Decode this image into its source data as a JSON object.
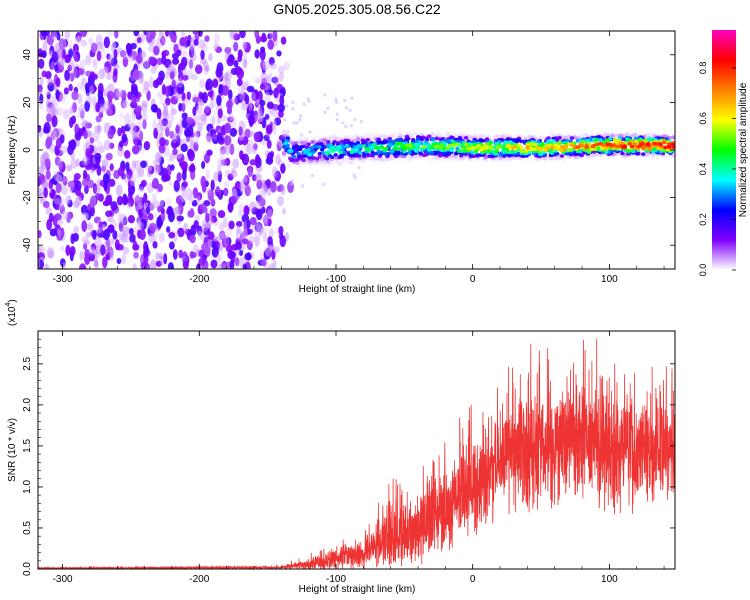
{
  "title": "GN05.2025.305.08.56.C22",
  "chart_data": [
    {
      "type": "heatmap",
      "title": "GN05.2025.305.08.56.C22",
      "xlabel": "Height of straight line (km)",
      "ylabel": "Frequency (Hz)",
      "xlim": [
        -318,
        148
      ],
      "ylim": [
        -50,
        50
      ],
      "x_ticks": [
        "-300",
        "-200",
        "-100",
        "0",
        "100"
      ],
      "y_ticks": [
        "-40",
        "-20",
        "0",
        "20",
        "40"
      ],
      "noise_region_x": [
        -318,
        -138
      ],
      "signal_band_center_hz": [
        {
          "x": -135,
          "y": -1
        },
        {
          "x": -100,
          "y": 0
        },
        {
          "x": -60,
          "y": 1
        },
        {
          "x": -40,
          "y": 2
        },
        {
          "x": 0,
          "y": 1
        },
        {
          "x": 50,
          "y": 1
        },
        {
          "x": 100,
          "y": 2
        },
        {
          "x": 148,
          "y": 2
        }
      ],
      "colorbar": {
        "label": "Normalized spectral amplitude",
        "range": [
          0,
          0.95
        ],
        "ticks": [
          "0.0",
          "0.2",
          "0.4",
          "0.6",
          "0.8"
        ],
        "colors": [
          "#ffffff",
          "#8000ff",
          "#0000ff",
          "#00ffff",
          "#00ff00",
          "#ffff00",
          "#ff8000",
          "#ff0000",
          "#ff00c0"
        ]
      }
    },
    {
      "type": "line",
      "xlabel": "Height of straight line (km)",
      "ylabel": "SNR (10 * v/v)",
      "y_multiplier": "(x10",
      "y_multiplier_exp": "4",
      "y_multiplier_close": ")",
      "xlim": [
        -318,
        148
      ],
      "ylim": [
        0,
        2.9
      ],
      "x_ticks": [
        "-300",
        "-200",
        "-100",
        "0",
        "100"
      ],
      "y_ticks": [
        "0.0",
        "0.5",
        "1.0",
        "1.5",
        "2.0",
        "2.5"
      ],
      "series": [
        {
          "name": "SNR",
          "color": "#ee3333",
          "envelope_x": [
            -318,
            -140,
            -112,
            -100,
            -80,
            -60,
            -40,
            -20,
            0,
            20,
            40,
            60,
            80,
            100,
            120,
            148
          ],
          "envelope_mean": [
            0.01,
            0.02,
            0.08,
            0.12,
            0.2,
            0.4,
            0.55,
            0.75,
            1.0,
            1.3,
            1.45,
            1.5,
            1.55,
            1.5,
            1.45,
            1.45
          ],
          "envelope_amp": [
            0.01,
            0.02,
            0.12,
            0.15,
            0.25,
            0.45,
            0.55,
            0.6,
            0.7,
            0.75,
            0.9,
            0.95,
            1.0,
            0.9,
            0.85,
            0.8
          ],
          "peak_value": 2.9
        }
      ]
    }
  ]
}
